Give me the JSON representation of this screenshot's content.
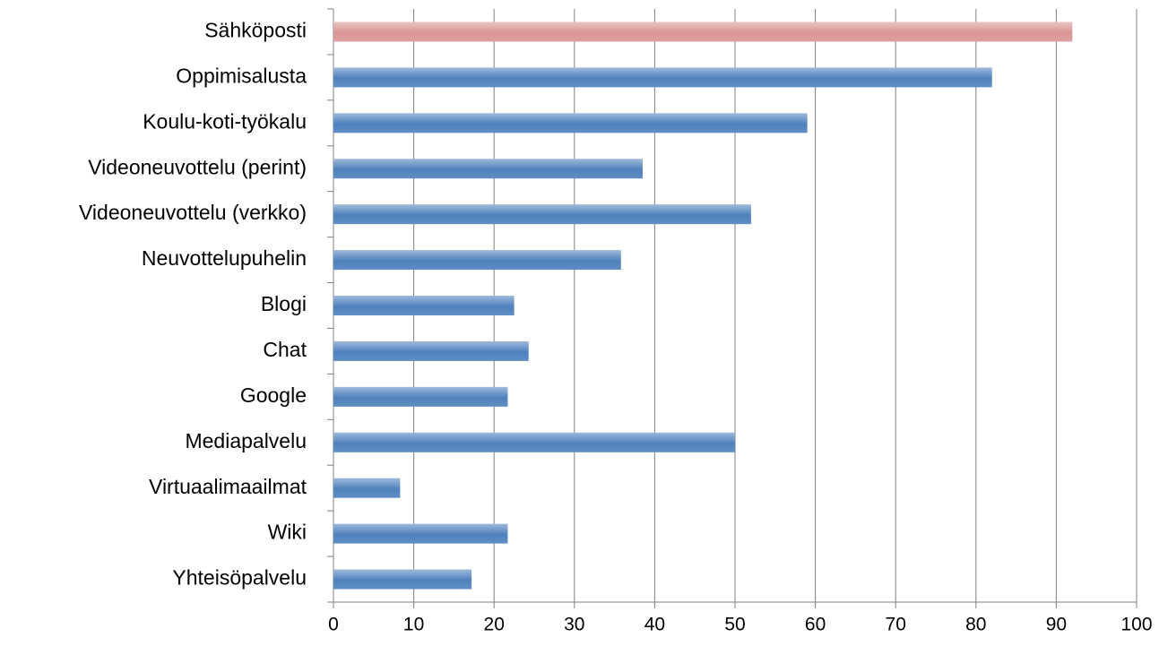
{
  "chart_data": {
    "type": "bar",
    "orientation": "horizontal",
    "categories": [
      "Sähköposti",
      "Oppimisalusta",
      "Koulu-koti-työkalu",
      "Videoneuvottelu (perint)",
      "Videoneuvottelu (verkko)",
      "Neuvottelupuhelin",
      "Blogi",
      "Chat",
      "Google",
      "Mediapalvelu",
      "Virtuaalimaailmat",
      "Wiki",
      "Yhteisöpalvelu"
    ],
    "values": [
      92,
      82,
      59,
      38.5,
      52,
      35.8,
      22.5,
      24.3,
      21.7,
      50,
      8.3,
      21.7,
      17.2
    ],
    "colors": [
      "#d99694",
      "#4f81bd",
      "#4f81bd",
      "#4f81bd",
      "#4f81bd",
      "#4f81bd",
      "#4f81bd",
      "#4f81bd",
      "#4f81bd",
      "#4f81bd",
      "#4f81bd",
      "#4f81bd",
      "#4f81bd"
    ],
    "xlim": [
      0,
      100
    ],
    "xticks": [
      0,
      10,
      20,
      30,
      40,
      50,
      60,
      70,
      80,
      90,
      100
    ],
    "grid": true
  }
}
